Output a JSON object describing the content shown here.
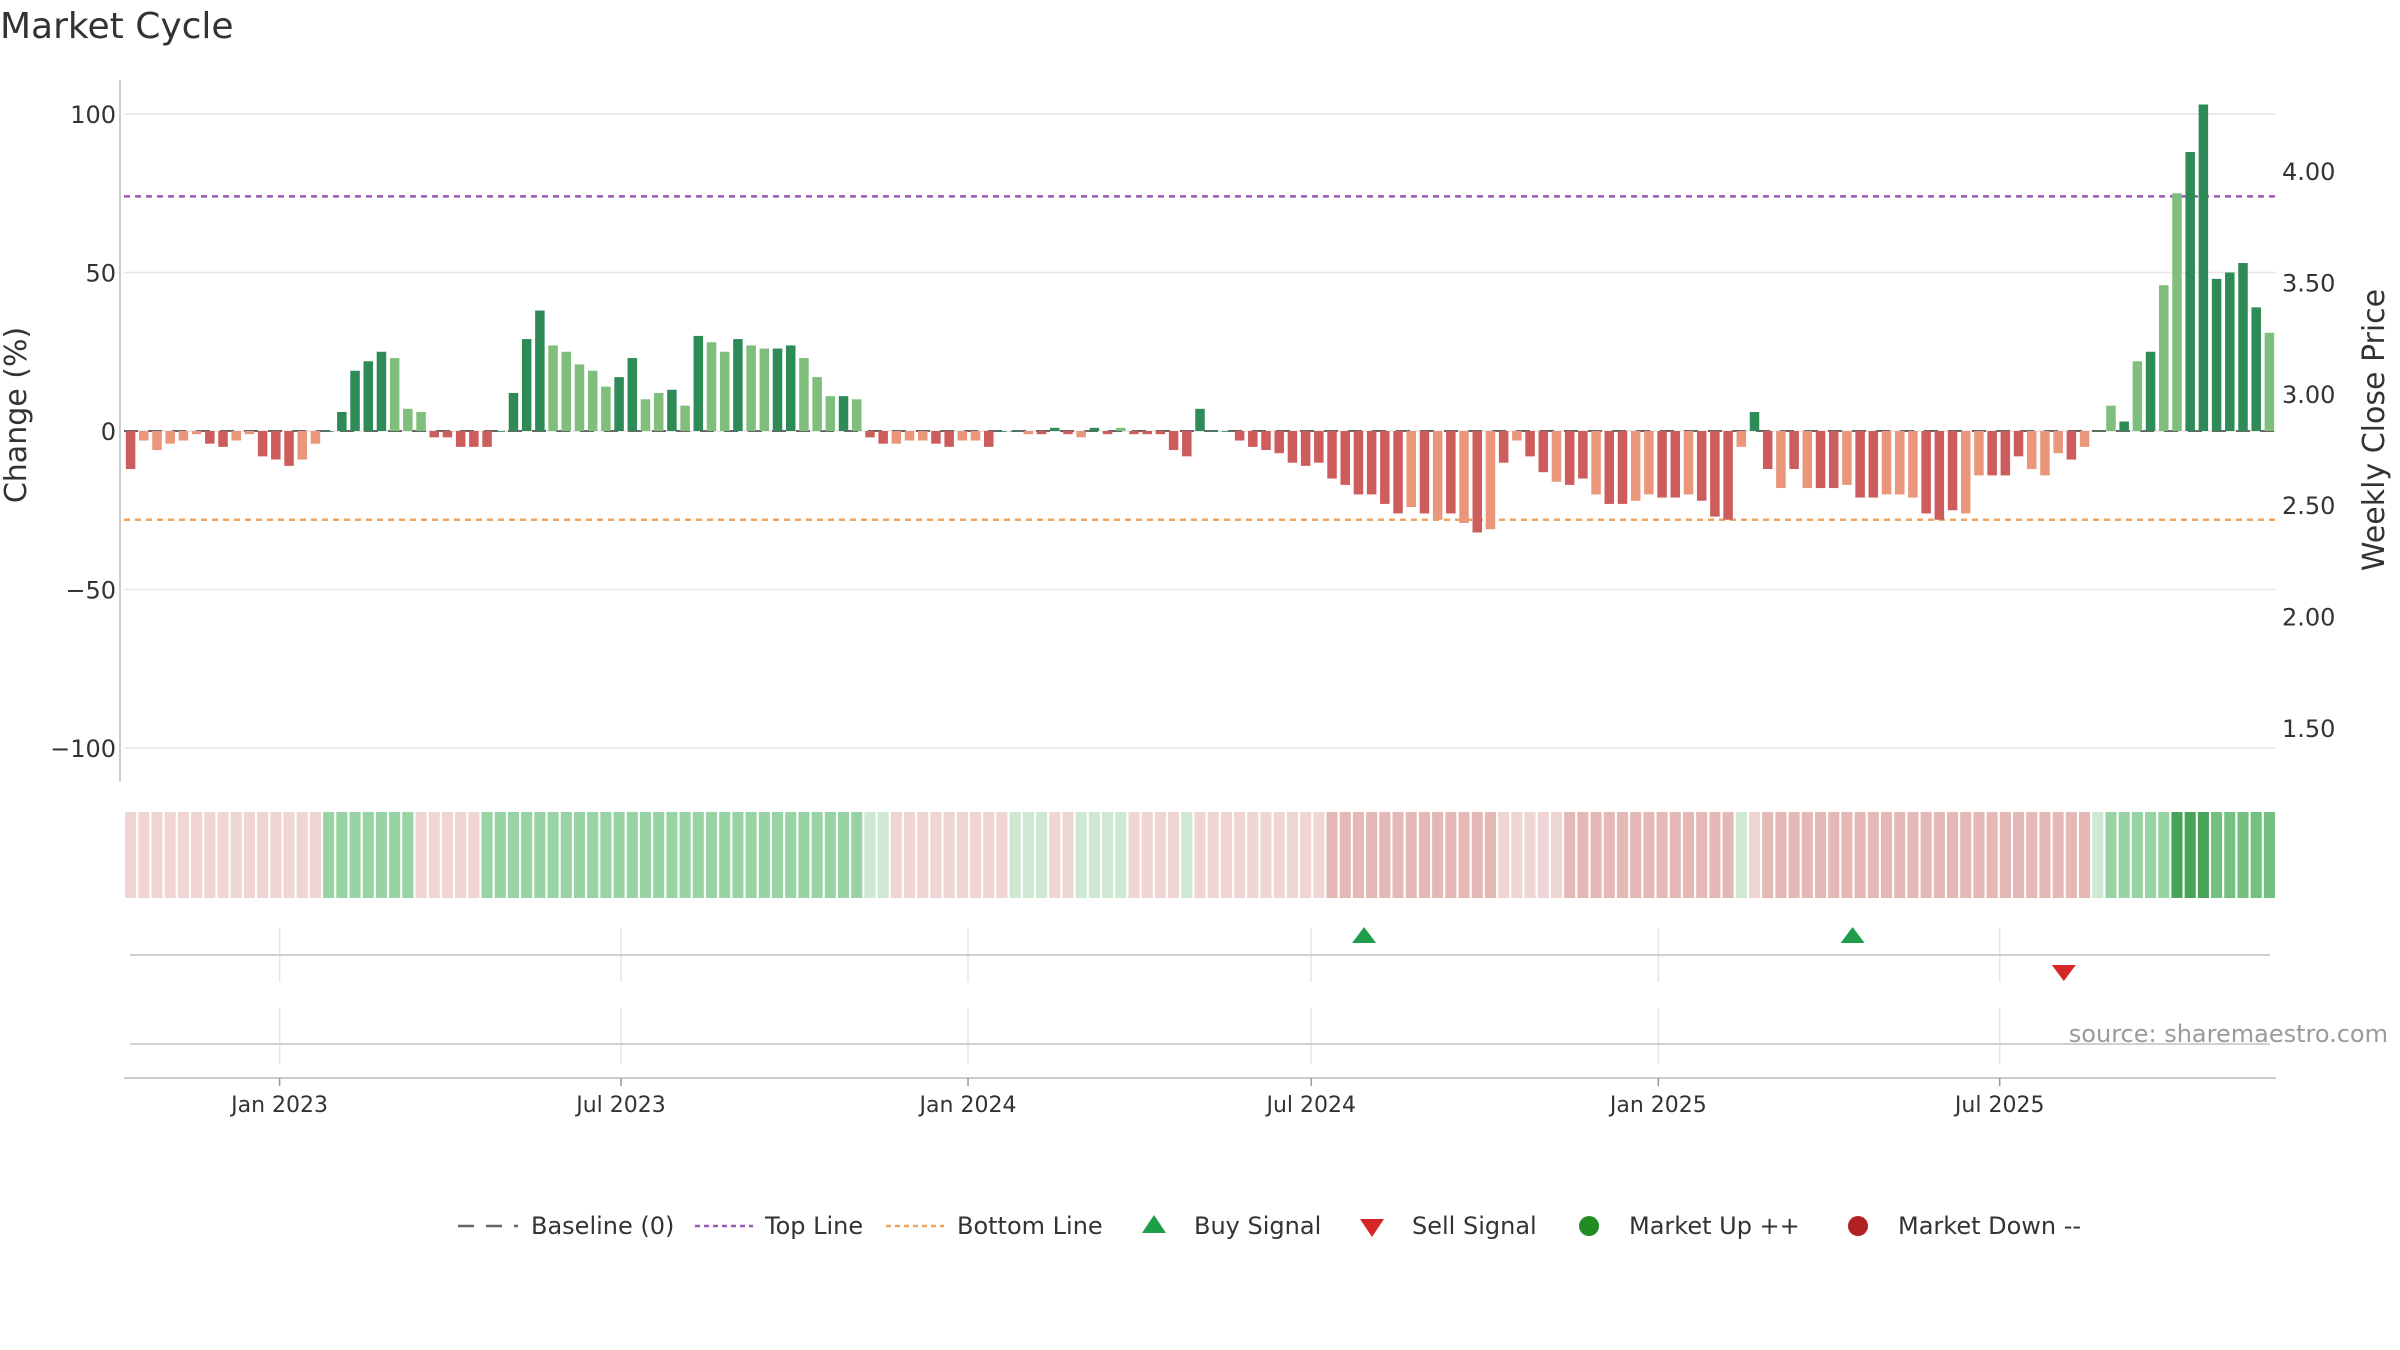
{
  "chart_data": {
    "type": "bar",
    "title": "Market Cycle",
    "ylabel": "Change (%)",
    "y2label": "Weekly Close Price",
    "ylim": [
      -100,
      100
    ],
    "y2lim": [
      1.5,
      4.0
    ],
    "y_ticks": [
      100,
      50,
      0,
      -50,
      -100
    ],
    "y_tick_labels": [
      "100",
      "50",
      "0",
      "−50",
      "−100"
    ],
    "y2_ticks": [
      4.0,
      3.5,
      3.0,
      2.5,
      2.0,
      1.5
    ],
    "y2_tick_labels": [
      "4.00",
      "3.50",
      "3.00",
      "2.50",
      "2.00",
      "1.50"
    ],
    "top_line": 74,
    "bottom_line": -28,
    "x_start": "2022-10-14",
    "x_step_days": 7,
    "x_ticks": [
      {
        "date": "2023-01-01",
        "label": "Jan 2023"
      },
      {
        "date": "2023-07-01",
        "label": "Jul 2023"
      },
      {
        "date": "2024-01-01",
        "label": "Jan 2024"
      },
      {
        "date": "2024-07-01",
        "label": "Jul 2024"
      },
      {
        "date": "2025-01-01",
        "label": "Jan 2025"
      },
      {
        "date": "2025-07-01",
        "label": "Jul 2025"
      }
    ],
    "values": [
      -12,
      -3,
      -6,
      -4,
      -3,
      -1,
      -4,
      -5,
      -3,
      -1,
      -8,
      -9,
      -11,
      -9,
      -4,
      0,
      6,
      19,
      22,
      25,
      23,
      7,
      6,
      -2,
      -2,
      -5,
      -5,
      -5,
      0,
      12,
      29,
      38,
      27,
      25,
      21,
      19,
      14,
      17,
      23,
      10,
      12,
      13,
      8,
      30,
      28,
      25,
      29,
      27,
      26,
      26,
      27,
      23,
      17,
      11,
      11,
      10,
      -2,
      -4,
      -4,
      -3,
      -3,
      -4,
      -5,
      -3,
      -3,
      -5,
      0,
      0,
      -1,
      -1,
      1,
      -1,
      -2,
      1,
      -1,
      1,
      -1,
      -1,
      -1,
      -6,
      -8,
      7,
      0,
      0,
      -3,
      -5,
      -6,
      -7,
      -10,
      -11,
      -10,
      -15,
      -17,
      -20,
      -20,
      -23,
      -26,
      -24,
      -26,
      -28,
      -26,
      -29,
      -32,
      -31,
      -10,
      -3,
      -8,
      -13,
      -16,
      -17,
      -15,
      -20,
      -23,
      -23,
      -22,
      -20,
      -21,
      -21,
      -20,
      -22,
      -27,
      -28,
      -5,
      6,
      -12,
      -18,
      -12,
      -18,
      -18,
      -18,
      -17,
      -21,
      -21,
      -20,
      -20,
      -21,
      -26,
      -28,
      -25,
      -26,
      -14,
      -14,
      -14,
      -8,
      -12,
      -14,
      -7,
      -9,
      -5,
      0,
      8,
      3,
      22,
      25,
      46,
      75,
      88,
      103,
      48,
      50,
      53,
      39,
      31
    ],
    "bar_styles": [
      "d",
      "l",
      "l",
      "l",
      "l",
      "l",
      "d",
      "d",
      "l",
      "l",
      "d",
      "d",
      "d",
      "l",
      "l",
      "d",
      "d",
      "d",
      "d",
      "d",
      "l",
      "l",
      "l",
      "d",
      "d",
      "d",
      "d",
      "d",
      "d",
      "d",
      "d",
      "d",
      "l",
      "l",
      "l",
      "l",
      "l",
      "d",
      "d",
      "l",
      "l",
      "d",
      "l",
      "d",
      "l",
      "l",
      "d",
      "l",
      "l",
      "d",
      "d",
      "l",
      "l",
      "l",
      "d",
      "l",
      "d",
      "d",
      "l",
      "l",
      "l",
      "d",
      "d",
      "l",
      "l",
      "d",
      "d",
      "d",
      "l",
      "d",
      "d",
      "d",
      "l",
      "d",
      "d",
      "l",
      "d",
      "d",
      "d",
      "d",
      "d",
      "d",
      "d",
      "d",
      "d",
      "d",
      "d",
      "d",
      "d",
      "d",
      "d",
      "d",
      "d",
      "d",
      "d",
      "d",
      "d",
      "l",
      "d",
      "l",
      "d",
      "l",
      "d",
      "l",
      "d",
      "l",
      "d",
      "d",
      "l",
      "d",
      "d",
      "l",
      "d",
      "d",
      "l",
      "l",
      "d",
      "d",
      "l",
      "d",
      "d",
      "d",
      "l",
      "d",
      "d",
      "l",
      "d",
      "l",
      "d",
      "d",
      "l",
      "d",
      "d",
      "l",
      "l",
      "l",
      "d",
      "d",
      "d",
      "l",
      "l",
      "d",
      "d",
      "d",
      "l",
      "l",
      "l",
      "d",
      "l",
      "d",
      "l",
      "d",
      "l",
      "d",
      "l",
      "l",
      "d",
      "d",
      "d",
      "d",
      "d",
      "d",
      "l",
      "d",
      "d",
      "l",
      "l"
    ],
    "regime_strip": [
      "d1",
      "d1",
      "d1",
      "d1",
      "d1",
      "d1",
      "d1",
      "d1",
      "d1",
      "d1",
      "d1",
      "d1",
      "d1",
      "d1",
      "d1",
      "u2",
      "u2",
      "u2",
      "u2",
      "u2",
      "u2",
      "u2",
      "d1",
      "d1",
      "d1",
      "d1",
      "d1",
      "u2",
      "u2",
      "u2",
      "u2",
      "u2",
      "u2",
      "u2",
      "u2",
      "u2",
      "u2",
      "u2",
      "u2",
      "u2",
      "u2",
      "u2",
      "u2",
      "u2",
      "u2",
      "u2",
      "u2",
      "u2",
      "u2",
      "u2",
      "u2",
      "u2",
      "u2",
      "u2",
      "u2",
      "u2",
      "u1",
      "u1",
      "d1",
      "d1",
      "d1",
      "d1",
      "d1",
      "d1",
      "d1",
      "d1",
      "d1",
      "u1",
      "u1",
      "u1",
      "d1",
      "d1",
      "u1",
      "u1",
      "u1",
      "u1",
      "d1",
      "d1",
      "d1",
      "d1",
      "u1",
      "d1",
      "d1",
      "d1",
      "d1",
      "d1",
      "d1",
      "d1",
      "d1",
      "d1",
      "d1",
      "d2",
      "d2",
      "d2",
      "d2",
      "d2",
      "d2",
      "d2",
      "d2",
      "d2",
      "d2",
      "d2",
      "d2",
      "d2",
      "d1",
      "d1",
      "d1",
      "d1",
      "d1",
      "d2",
      "d2",
      "d2",
      "d2",
      "d2",
      "d2",
      "d2",
      "d2",
      "d2",
      "d2",
      "d2",
      "d2",
      "d2",
      "u1",
      "d1",
      "d2",
      "d2",
      "d2",
      "d2",
      "d2",
      "d2",
      "d2",
      "d2",
      "d2",
      "d2",
      "d2",
      "d2",
      "d2",
      "d2",
      "d2",
      "d2",
      "d2",
      "d2",
      "d2",
      "d2",
      "d2",
      "d2",
      "d2",
      "d2",
      "d2",
      "u1",
      "u2",
      "u2",
      "u2",
      "u2",
      "u2",
      "u4",
      "u4",
      "u4",
      "u3",
      "u3",
      "u3",
      "u3",
      "u3"
    ],
    "buy_signals": [
      "2024-07-29",
      "2025-04-14"
    ],
    "sell_signals": [
      "2025-08-04"
    ],
    "legend": [
      "Baseline (0)",
      "Top Line",
      "Bottom Line",
      "Buy Signal",
      "Sell Signal",
      "Market Up ++",
      "Market Down --"
    ],
    "colors": {
      "up_dark": "#2e8b57",
      "up_light": "#7fbf7b",
      "down_dark": "#cd5c5c",
      "down_light": "#e9967a",
      "top_line": "#9b59b6",
      "bottom_line": "#f0a35e",
      "buy": "#1e9e4a",
      "sell": "#d62728",
      "market_up": "#228b22",
      "market_down": "#b22222",
      "strip_d1": "#efd6d4",
      "strip_d2": "#e4b8b4",
      "strip_u1": "#cfe8d4",
      "strip_u2": "#98d3a4",
      "strip_u3": "#74c081",
      "strip_u4": "#46a358",
      "grid": "#e6e6e6",
      "axis": "#cccccc"
    },
    "grid": true,
    "legend_position": "bottom"
  },
  "source": "source: sharemaestro.com"
}
